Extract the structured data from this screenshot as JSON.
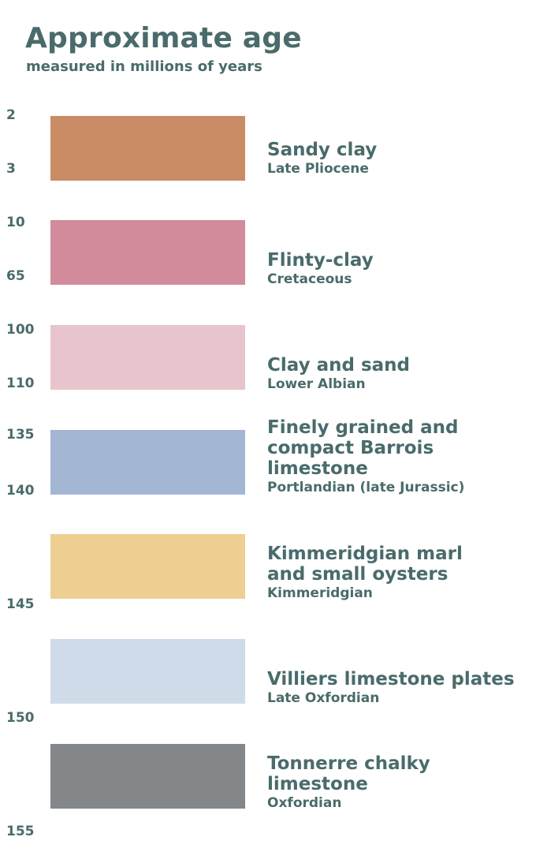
{
  "header": {
    "title": "Approximate age",
    "subtitle": "measured in millions of years"
  },
  "ticks": [
    "2",
    "3",
    "10",
    "65",
    "100",
    "110",
    "135",
    "140",
    "145",
    "150",
    "155"
  ],
  "layers": [
    {
      "name": "Sandy clay",
      "period": "Late Pliocene",
      "color": "#c98c64"
    },
    {
      "name": "Flinty-clay",
      "period": "Cretaceous",
      "color": "#d28b9a"
    },
    {
      "name": "Clay and sand",
      "period": "Lower Albian",
      "color": "#e8c5cc"
    },
    {
      "name": "Finely grained and\ncompact Barrois limestone",
      "period": "Portlandian (late Jurassic)",
      "color": "#a3b7d4"
    },
    {
      "name": "Kimmeridgian marl\nand small oysters",
      "period": "Kimmeridgian",
      "color": "#edcf92"
    },
    {
      "name": "Villiers limestone plates",
      "period": "Late Oxfordian",
      "color": "#cfdbe9"
    },
    {
      "name": "Tonnerre chalky\nlimestone",
      "period": "Oxfordian",
      "color": "#838789"
    }
  ]
}
